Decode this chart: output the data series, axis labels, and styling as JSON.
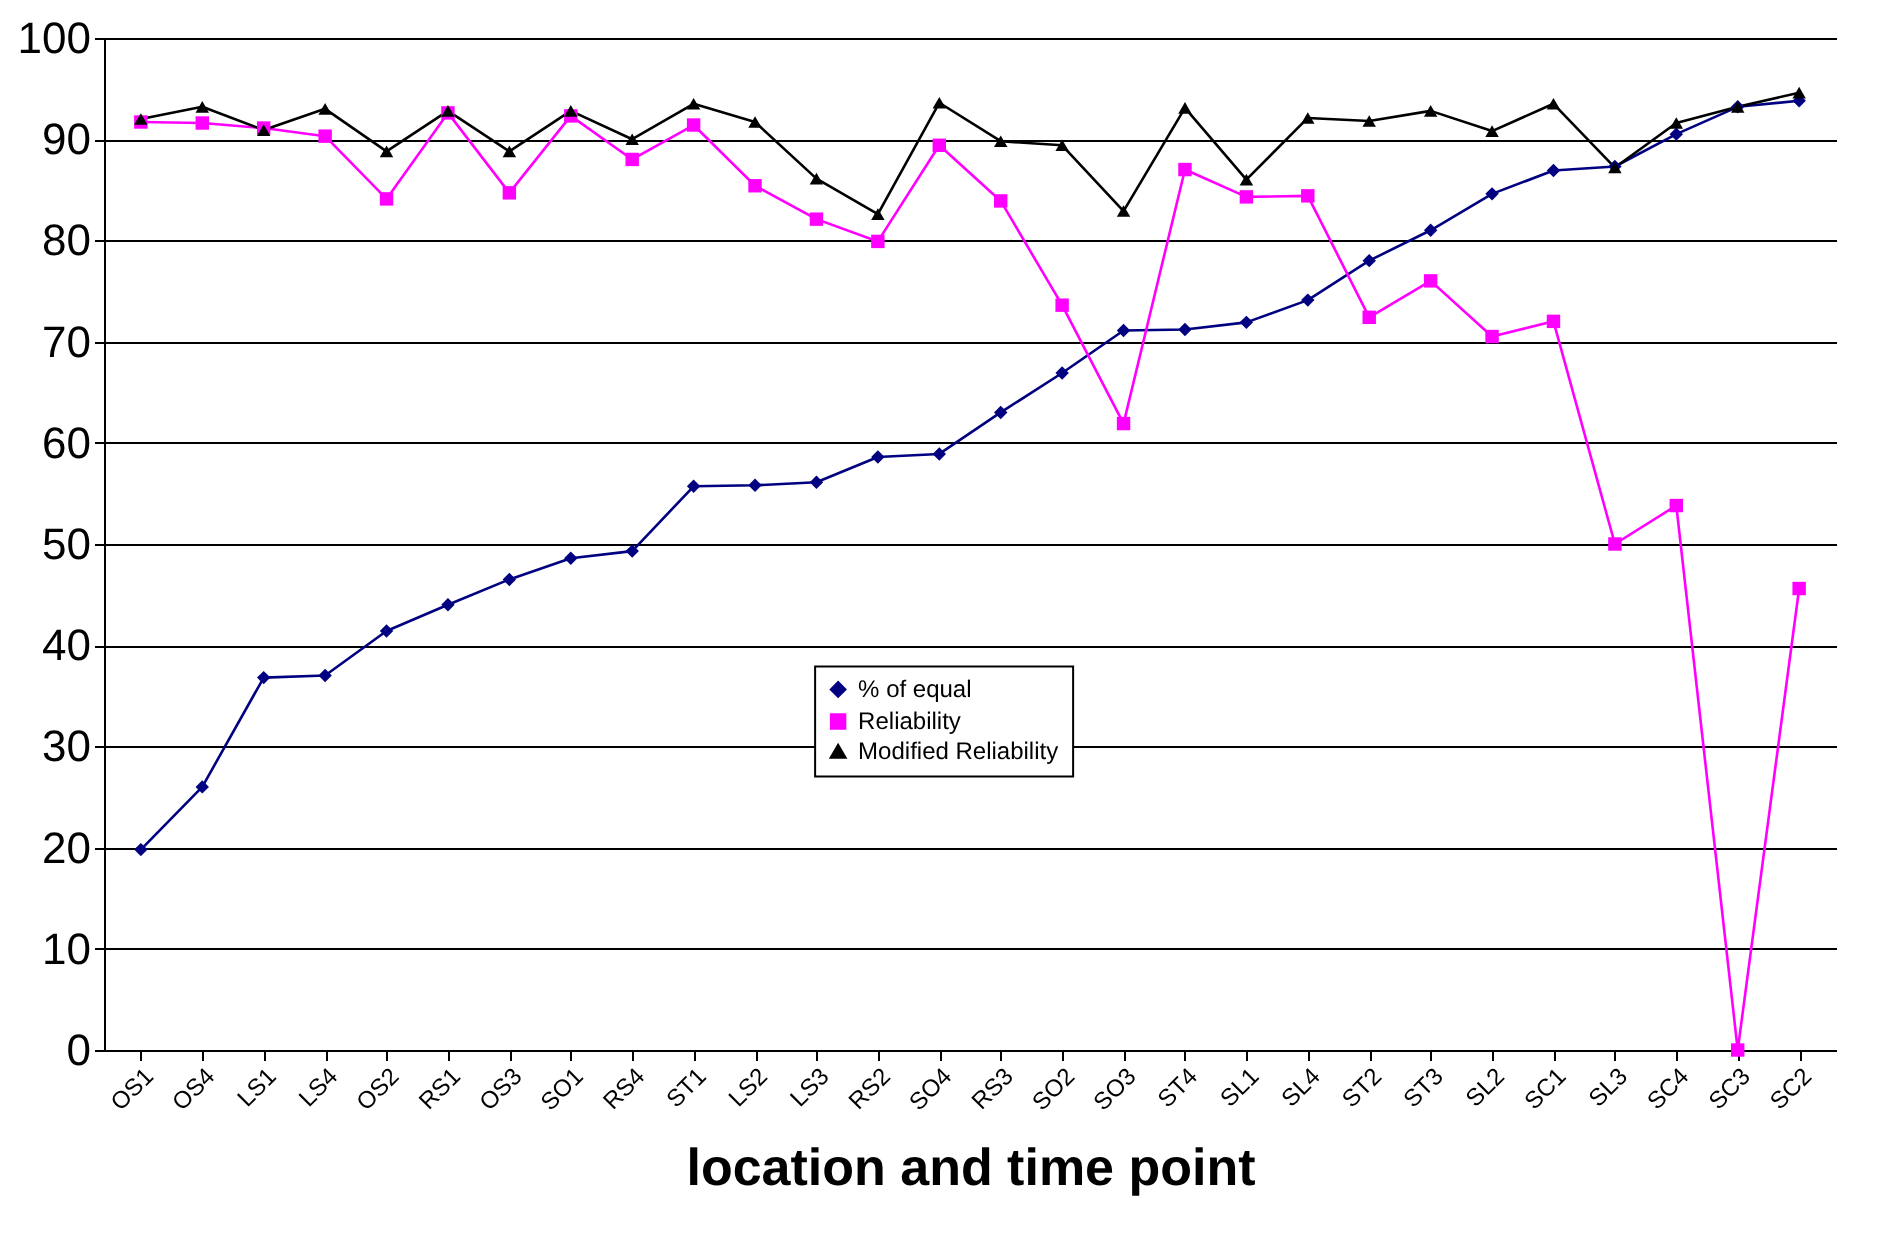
{
  "chart_data": {
    "type": "line",
    "xlabel": "location and time point",
    "categories": [
      "OS1",
      "OS4",
      "LS1",
      "LS4",
      "OS2",
      "RS1",
      "OS3",
      "SO1",
      "RS4",
      "ST1",
      "LS2",
      "LS3",
      "RS2",
      "SO4",
      "RS3",
      "SO2",
      "SO3",
      "ST4",
      "SL1",
      "SL4",
      "ST2",
      "ST3",
      "SL2",
      "SC1",
      "SL3",
      "SC4",
      "SC3",
      "SC2"
    ],
    "series": [
      {
        "name": "% of equal",
        "color": "#000080",
        "marker": "diamond",
        "values": [
          19.8,
          26,
          36.8,
          37,
          41.4,
          44,
          46.5,
          48.6,
          49.3,
          55.7,
          55.8,
          56.1,
          58.6,
          58.9,
          63,
          66.9,
          71.1,
          71.2,
          71.9,
          74.1,
          78,
          81,
          84.6,
          86.9,
          87.3,
          90.5,
          93.2,
          93.8
        ]
      },
      {
        "name": "Reliability",
        "color": "#ff00ff",
        "marker": "square",
        "values": [
          91.7,
          91.6,
          91.1,
          90.3,
          84.1,
          92.6,
          84.7,
          92.3,
          88,
          91.4,
          85.4,
          82.1,
          79.9,
          89.4,
          83.9,
          73.6,
          61.9,
          87,
          84.3,
          84.4,
          72.4,
          76,
          70.5,
          72,
          50,
          53.8,
          0,
          45.6
        ]
      },
      {
        "name": "Modified Reliability",
        "color": "#000000",
        "marker": "triangle",
        "values": [
          92,
          93.2,
          90.9,
          93,
          88.8,
          92.8,
          88.8,
          92.8,
          90,
          93.5,
          91.7,
          86.1,
          82.6,
          93.6,
          89.8,
          89.4,
          82.9,
          93.1,
          86,
          92.1,
          91.8,
          92.8,
          90.8,
          93.5,
          87.2,
          91.6,
          93.2,
          94.6
        ]
      }
    ],
    "ylim": [
      0,
      100
    ],
    "yticks": [
      0,
      10,
      20,
      30,
      40,
      50,
      60,
      70,
      80,
      90,
      100
    ],
    "grid": "y",
    "legend": "center",
    "line_style": "solid"
  }
}
